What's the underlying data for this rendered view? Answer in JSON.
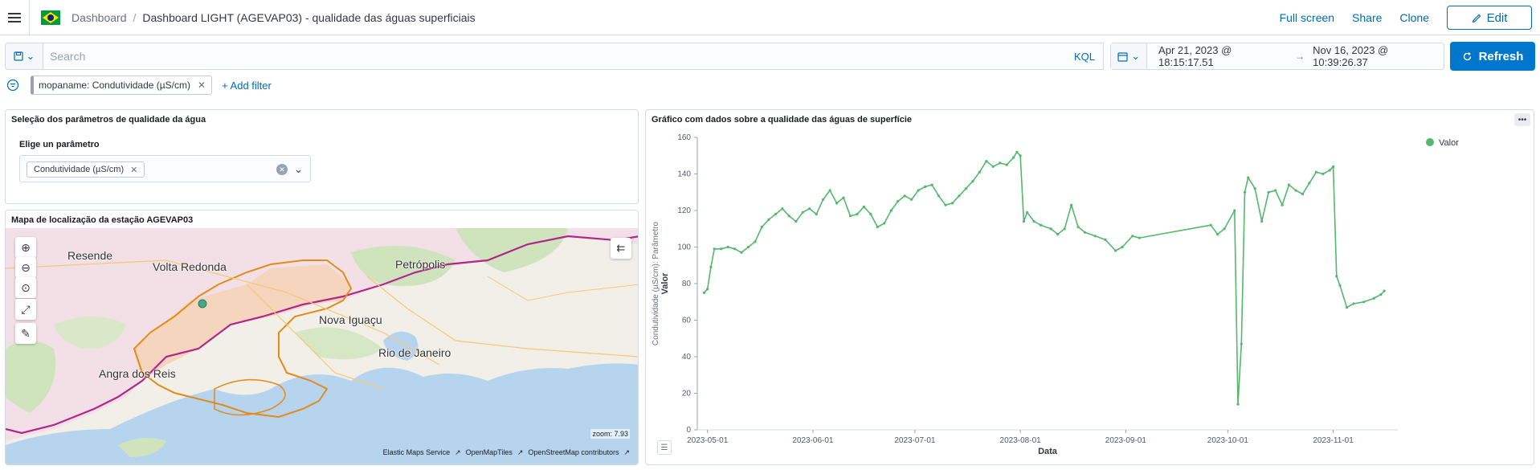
{
  "header": {
    "breadcrumb_root": "Dashboard",
    "breadcrumb_current": "Dashboard LIGHT (AGEVAP03) - qualidade das águas superficiais",
    "full_screen": "Full screen",
    "share": "Share",
    "clone": "Clone",
    "edit": "Edit",
    "menu_icon": "hamburger-menu-icon",
    "logo_icon": "brazil-flag-icon"
  },
  "query": {
    "search_placeholder": "Search",
    "language": "KQL",
    "date_start": "Apr 21, 2023 @ 18:15:17.51",
    "date_end": "Nov 16, 2023 @ 10:39:26.37",
    "refresh": "Refresh",
    "date_arrow": "→"
  },
  "filters": {
    "pill": "mopaname: Condutividade (µS/cm)",
    "add": "+ Add filter"
  },
  "panel_params": {
    "title": "Seleção dos parâmetros de qualidade da água",
    "label": "Elige un parâmetro",
    "selected": "Condutividade (µS/cm)"
  },
  "panel_map": {
    "title": "Mapa de localização da estação AGEVAP03",
    "labels": {
      "resende": "Resende",
      "volta_redonda": "Volta Redonda",
      "petropolis": "Petrópolis",
      "nova_iguacu": "Nova Iguaçu",
      "rio": "Rio de Janeiro",
      "angra": "Angra dos Reis"
    },
    "zoom": "zoom: 7.93",
    "attribution": [
      "Elastic Maps Service",
      "OpenMapTiles",
      "OpenStreetMap contributors"
    ]
  },
  "panel_chart": {
    "title": "Gráfico com dados sobre a qualidade das águas de superfície"
  },
  "colors": {
    "accent": "#0077cc",
    "series": "#54b86c",
    "station": "#46a88a",
    "border_purple": "#b0278c",
    "border_orange": "#e38a17"
  },
  "chart_data": {
    "type": "line",
    "xlabel": "Data",
    "ylabel": "Valor",
    "ylabel_sub": "Condutividade (µS/cm): Parâmetro",
    "legend": "Valor",
    "legend_position": "top-right",
    "ylim": [
      0,
      160
    ],
    "y_ticks": [
      0,
      20,
      40,
      60,
      80,
      100,
      120,
      140,
      160
    ],
    "x_ticks": [
      "2023-05-01",
      "2023-06-01",
      "2023-07-01",
      "2023-08-01",
      "2023-09-01",
      "2023-10-01",
      "2023-11-01"
    ],
    "xlim": [
      "2023-04-28",
      "2023-11-20"
    ],
    "series": [
      {
        "name": "Valor",
        "points": [
          [
            "2023-04-30",
            75
          ],
          [
            "2023-05-01",
            77
          ],
          [
            "2023-05-02",
            89
          ],
          [
            "2023-05-03",
            99
          ],
          [
            "2023-05-05",
            99
          ],
          [
            "2023-05-07",
            100
          ],
          [
            "2023-05-09",
            99
          ],
          [
            "2023-05-11",
            97
          ],
          [
            "2023-05-13",
            100
          ],
          [
            "2023-05-15",
            103
          ],
          [
            "2023-05-17",
            111
          ],
          [
            "2023-05-19",
            115
          ],
          [
            "2023-05-21",
            118
          ],
          [
            "2023-05-23",
            121
          ],
          [
            "2023-05-25",
            117
          ],
          [
            "2023-05-27",
            114
          ],
          [
            "2023-05-29",
            119
          ],
          [
            "2023-05-31",
            121
          ],
          [
            "2023-06-02",
            118
          ],
          [
            "2023-06-04",
            126
          ],
          [
            "2023-06-06",
            131
          ],
          [
            "2023-06-08",
            124
          ],
          [
            "2023-06-10",
            127
          ],
          [
            "2023-06-12",
            117
          ],
          [
            "2023-06-14",
            118
          ],
          [
            "2023-06-16",
            122
          ],
          [
            "2023-06-18",
            118
          ],
          [
            "2023-06-20",
            111
          ],
          [
            "2023-06-22",
            113
          ],
          [
            "2023-06-24",
            120
          ],
          [
            "2023-06-26",
            125
          ],
          [
            "2023-06-28",
            128
          ],
          [
            "2023-06-30",
            126
          ],
          [
            "2023-07-02",
            131
          ],
          [
            "2023-07-04",
            133
          ],
          [
            "2023-07-06",
            134
          ],
          [
            "2023-07-08",
            128
          ],
          [
            "2023-07-10",
            123
          ],
          [
            "2023-07-12",
            124
          ],
          [
            "2023-07-14",
            128
          ],
          [
            "2023-07-16",
            132
          ],
          [
            "2023-07-18",
            136
          ],
          [
            "2023-07-20",
            141
          ],
          [
            "2023-07-22",
            147
          ],
          [
            "2023-07-24",
            144
          ],
          [
            "2023-07-26",
            146
          ],
          [
            "2023-07-28",
            145
          ],
          [
            "2023-07-30",
            149
          ],
          [
            "2023-07-31",
            152
          ],
          [
            "2023-08-01",
            150
          ],
          [
            "2023-08-02",
            114
          ],
          [
            "2023-08-03",
            119
          ],
          [
            "2023-08-05",
            114
          ],
          [
            "2023-08-07",
            112
          ],
          [
            "2023-08-10",
            110
          ],
          [
            "2023-08-12",
            107
          ],
          [
            "2023-08-14",
            110
          ],
          [
            "2023-08-16",
            123
          ],
          [
            "2023-08-18",
            111
          ],
          [
            "2023-08-20",
            108
          ],
          [
            "2023-08-23",
            106
          ],
          [
            "2023-08-26",
            104
          ],
          [
            "2023-08-29",
            98
          ],
          [
            "2023-08-31",
            100
          ],
          [
            "2023-09-03",
            106
          ],
          [
            "2023-09-05",
            105
          ],
          [
            "2023-09-26",
            112
          ],
          [
            "2023-09-28",
            107
          ],
          [
            "2023-09-30",
            110
          ],
          [
            "2023-10-03",
            120
          ],
          [
            "2023-10-04",
            14
          ],
          [
            "2023-10-05",
            47
          ],
          [
            "2023-10-06",
            130
          ],
          [
            "2023-10-07",
            138
          ],
          [
            "2023-10-09",
            132
          ],
          [
            "2023-10-11",
            114
          ],
          [
            "2023-10-13",
            130
          ],
          [
            "2023-10-15",
            131
          ],
          [
            "2023-10-17",
            123
          ],
          [
            "2023-10-19",
            134
          ],
          [
            "2023-10-21",
            131
          ],
          [
            "2023-10-23",
            129
          ],
          [
            "2023-10-25",
            135
          ],
          [
            "2023-10-27",
            141
          ],
          [
            "2023-10-29",
            140
          ],
          [
            "2023-10-31",
            142
          ],
          [
            "2023-11-01",
            144
          ],
          [
            "2023-11-02",
            84
          ],
          [
            "2023-11-03",
            79
          ],
          [
            "2023-11-05",
            67
          ],
          [
            "2023-11-07",
            69
          ],
          [
            "2023-11-10",
            70
          ],
          [
            "2023-11-13",
            72
          ],
          [
            "2023-11-15",
            74
          ],
          [
            "2023-11-16",
            76
          ]
        ]
      }
    ]
  }
}
